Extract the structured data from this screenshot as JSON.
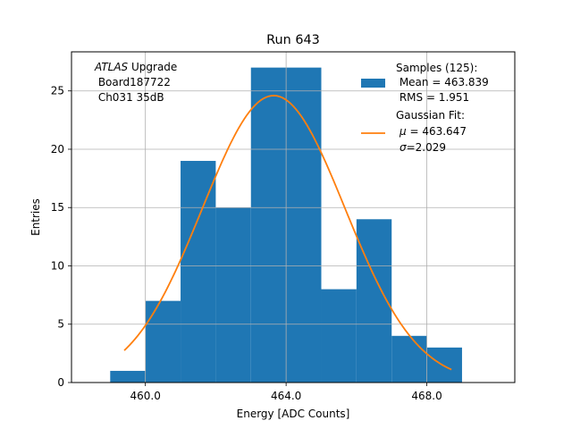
{
  "chart_data": {
    "type": "bar",
    "title": "Run 643",
    "xlabel": "Energy [ADC Counts]",
    "ylabel": "Entries",
    "xlim": [
      457.9,
      470.5
    ],
    "ylim": [
      0,
      28.35
    ],
    "x_ticks": [
      460.0,
      464.0,
      468.0
    ],
    "x_tick_labels": [
      "460.0",
      "464.0",
      "468.0"
    ],
    "y_ticks": [
      0,
      5,
      10,
      15,
      20,
      25
    ],
    "y_tick_labels": [
      "0",
      "5",
      "10",
      "15",
      "20",
      "25"
    ],
    "grid": true,
    "annotation": {
      "atlas_italic": "ATLAS",
      "line1_rest": " Upgrade",
      "line2": " Board187722",
      "line3": " Ch031 35dB"
    },
    "histogram": {
      "name": "Samples (125):",
      "color": "#1f77b4",
      "bin_edges": [
        459.0,
        460.0,
        461.0,
        462.0,
        463.0,
        464.0,
        465.0,
        466.0,
        467.0,
        468.0,
        469.0
      ],
      "counts": [
        1,
        7,
        19,
        15,
        27,
        27,
        8,
        14,
        4,
        3
      ]
    },
    "fit": {
      "name": "Gaussian Fit:",
      "color": "#ff7f0e",
      "mu": 463.647,
      "sigma": 2.029,
      "amplitude": 24.6,
      "x_range": [
        459.4,
        468.7
      ]
    },
    "legend": {
      "placement": "upper right",
      "hist_line1": "Samples (125):",
      "hist_line2": " Mean = 463.839",
      "hist_line3": " RMS = 1.951",
      "fit_line1": "Gaussian Fit:",
      "fit_line2_sym": "μ",
      "fit_line2_rest": " = 463.647",
      "fit_line3_sym": "σ",
      "fit_line3_rest": "=2.029"
    }
  }
}
